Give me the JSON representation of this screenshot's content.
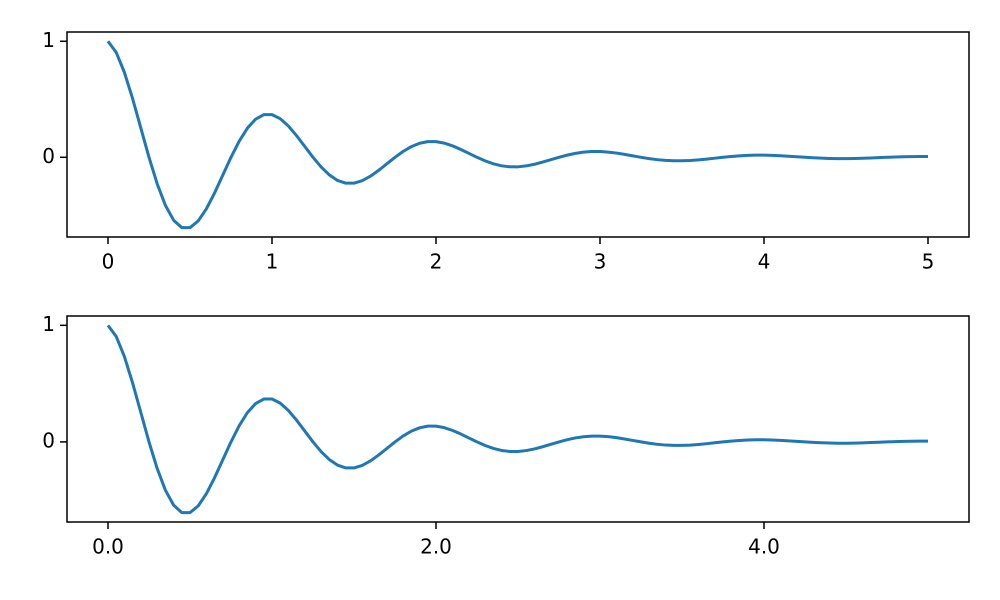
{
  "chart_data": [
    {
      "type": "line",
      "x": [
        0,
        0.05,
        0.1,
        0.15,
        0.2,
        0.25,
        0.3,
        0.35,
        0.4,
        0.45,
        0.5,
        0.55,
        0.6,
        0.65,
        0.7,
        0.75,
        0.8,
        0.85,
        0.9,
        0.95,
        1,
        1.05,
        1.1,
        1.15,
        1.2,
        1.25,
        1.3,
        1.35,
        1.4,
        1.45,
        1.5,
        1.55,
        1.6,
        1.65,
        1.7,
        1.75,
        1.8,
        1.85,
        1.9,
        1.95,
        2,
        2.05,
        2.1,
        2.15,
        2.2,
        2.25,
        2.3,
        2.35,
        2.4,
        2.45,
        2.5,
        2.55,
        2.6,
        2.65,
        2.7,
        2.75,
        2.8,
        2.85,
        2.9,
        2.95,
        3,
        3.05,
        3.1,
        3.15,
        3.2,
        3.25,
        3.3,
        3.35,
        3.4,
        3.45,
        3.5,
        3.55,
        3.6,
        3.65,
        3.7,
        3.75,
        3.8,
        3.85,
        3.9,
        3.95,
        4,
        4.05,
        4.1,
        4.15,
        4.2,
        4.25,
        4.3,
        4.35,
        4.4,
        4.45,
        4.5,
        4.55,
        4.6,
        4.65,
        4.7,
        4.75,
        4.8,
        4.85,
        4.9,
        4.95,
        5
      ],
      "series": [
        {
          "color": "#1f77b4",
          "values": [
            1,
            0.9047,
            0.732,
            0.5059,
            0.253,
            0,
            -0.2289,
            -0.4142,
            -0.5423,
            -0.6064,
            -0.6065,
            -0.5487,
            -0.444,
            -0.3068,
            -0.1535,
            0,
            0.1388,
            0.2512,
            0.3289,
            0.3678,
            0.368,
            0.3328,
            0.2693,
            0.1861,
            0.0931,
            0,
            -0.0842,
            -0.1524,
            -0.1995,
            -0.2231,
            -0.2231,
            -0.2019,
            -0.1633,
            -0.1129,
            -0.0565,
            0,
            0.0511,
            0.0924,
            0.121,
            0.1353,
            0.1353,
            0.1224,
            0.099,
            0.0684,
            0.0342,
            0,
            -0.031,
            -0.056,
            -0.0734,
            -0.082,
            -0.0821,
            -0.0742,
            -0.0601,
            -0.0415,
            -0.0208,
            0,
            0.0188,
            0.034,
            0.0445,
            0.0498,
            0.0498,
            0.045,
            0.0364,
            0.0252,
            0.0126,
            0,
            -0.0114,
            -0.0206,
            -0.027,
            -0.0302,
            -0.0302,
            -0.0273,
            -0.0221,
            -0.0153,
            -0.0076,
            0,
            0.0069,
            0.0125,
            0.0164,
            0.0183,
            0.0183,
            0.0166,
            0.0134,
            0.0093,
            0.0046,
            0,
            -0.0042,
            -0.0076,
            -0.0099,
            -0.0111,
            -0.0111,
            -0.0101,
            -0.0081,
            -0.0056,
            -0.0028,
            0,
            0.0025,
            0.0046,
            0.006,
            0.0067,
            0.0067
          ]
        }
      ],
      "xlim": [
        -0.25,
        5.25
      ],
      "xticks": [
        0,
        1,
        2,
        3,
        4,
        5
      ],
      "ylim": [
        -0.687,
        1.08
      ],
      "yticks": [
        0,
        1
      ]
    },
    {
      "type": "line",
      "x": [
        0,
        0.05,
        0.1,
        0.15,
        0.2,
        0.25,
        0.3,
        0.35,
        0.4,
        0.45,
        0.5,
        0.55,
        0.6,
        0.65,
        0.7,
        0.75,
        0.8,
        0.85,
        0.9,
        0.95,
        1,
        1.05,
        1.1,
        1.15,
        1.2,
        1.25,
        1.3,
        1.35,
        1.4,
        1.45,
        1.5,
        1.55,
        1.6,
        1.65,
        1.7,
        1.75,
        1.8,
        1.85,
        1.9,
        1.95,
        2,
        2.05,
        2.1,
        2.15,
        2.2,
        2.25,
        2.3,
        2.35,
        2.4,
        2.45,
        2.5,
        2.55,
        2.6,
        2.65,
        2.7,
        2.75,
        2.8,
        2.85,
        2.9,
        2.95,
        3,
        3.05,
        3.1,
        3.15,
        3.2,
        3.25,
        3.3,
        3.35,
        3.4,
        3.45,
        3.5,
        3.55,
        3.6,
        3.65,
        3.7,
        3.75,
        3.8,
        3.85,
        3.9,
        3.95,
        4,
        4.05,
        4.1,
        4.15,
        4.2,
        4.25,
        4.3,
        4.35,
        4.4,
        4.45,
        4.5,
        4.55,
        4.6,
        4.65,
        4.7,
        4.75,
        4.8,
        4.85,
        4.9,
        4.95,
        5
      ],
      "series": [
        {
          "color": "#1f77b4",
          "values": [
            1,
            0.9047,
            0.732,
            0.5059,
            0.253,
            0,
            -0.2289,
            -0.4142,
            -0.5423,
            -0.6064,
            -0.6065,
            -0.5487,
            -0.444,
            -0.3068,
            -0.1535,
            0,
            0.1388,
            0.2512,
            0.3289,
            0.3678,
            0.368,
            0.3328,
            0.2693,
            0.1861,
            0.0931,
            0,
            -0.0842,
            -0.1524,
            -0.1995,
            -0.2231,
            -0.2231,
            -0.2019,
            -0.1633,
            -0.1129,
            -0.0565,
            0,
            0.0511,
            0.0924,
            0.121,
            0.1353,
            0.1353,
            0.1224,
            0.099,
            0.0684,
            0.0342,
            0,
            -0.031,
            -0.056,
            -0.0734,
            -0.082,
            -0.0821,
            -0.0742,
            -0.0601,
            -0.0415,
            -0.0208,
            0,
            0.0188,
            0.034,
            0.0445,
            0.0498,
            0.0498,
            0.045,
            0.0364,
            0.0252,
            0.0126,
            0,
            -0.0114,
            -0.0206,
            -0.027,
            -0.0302,
            -0.0302,
            -0.0273,
            -0.0221,
            -0.0153,
            -0.0076,
            0,
            0.0069,
            0.0125,
            0.0164,
            0.0183,
            0.0183,
            0.0166,
            0.0134,
            0.0093,
            0.0046,
            0,
            -0.0042,
            -0.0076,
            -0.0099,
            -0.0111,
            -0.0111,
            -0.0101,
            -0.0081,
            -0.0056,
            -0.0028,
            0,
            0.0025,
            0.0046,
            0.006,
            0.0067,
            0.0067
          ]
        }
      ],
      "xlim": [
        -0.25,
        5.25
      ],
      "xticks": [
        {
          "value": 0,
          "label": "0.0"
        },
        {
          "value": 2,
          "label": "2.0"
        },
        {
          "value": 4,
          "label": "4.0"
        }
      ],
      "ylim": [
        -0.687,
        1.08
      ],
      "yticks": [
        0,
        1
      ]
    }
  ]
}
